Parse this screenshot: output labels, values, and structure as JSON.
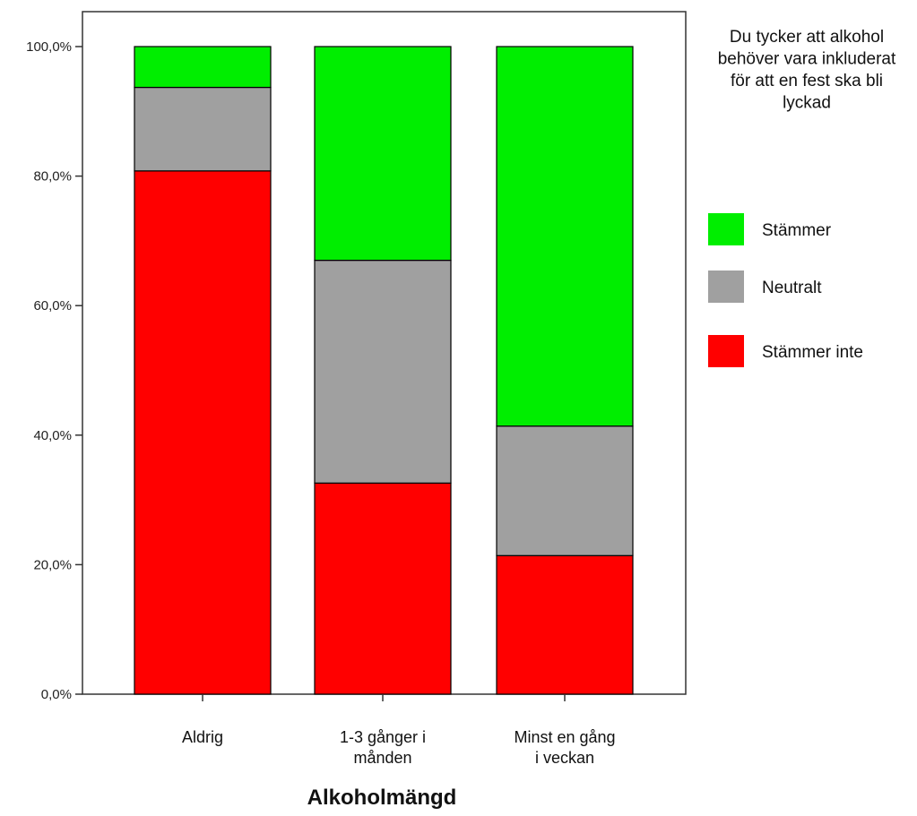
{
  "chart_data": {
    "type": "bar",
    "stacked": true,
    "categories": [
      [
        "Aldrig"
      ],
      [
        "1-3 gånger i",
        "månden"
      ],
      [
        "Minst en gång",
        "i veckan"
      ]
    ],
    "series": [
      {
        "name": "Stämmer inte",
        "color": "#ff0000",
        "values": [
          80.8,
          32.6,
          21.4
        ]
      },
      {
        "name": "Neutralt",
        "color": "#a0a0a0",
        "values": [
          12.9,
          34.4,
          20.0
        ]
      },
      {
        "name": "Stämmer",
        "color": "#00ee00",
        "values": [
          6.3,
          33.0,
          58.6
        ]
      }
    ],
    "yticks": [
      "0,0%",
      "20,0%",
      "40,0%",
      "60,0%",
      "80,0%",
      "100,0%"
    ],
    "ylim": [
      0,
      100
    ],
    "xlabel": "Alkoholmängd",
    "ylabel": "",
    "legend": {
      "title": [
        "Du tycker att alkohol",
        "behöver vara inkluderat",
        "för att en fest ska bli",
        "lyckad"
      ],
      "order": [
        "Stämmer",
        "Neutralt",
        "Stämmer inte"
      ],
      "placement": "right"
    },
    "grid": false
  }
}
